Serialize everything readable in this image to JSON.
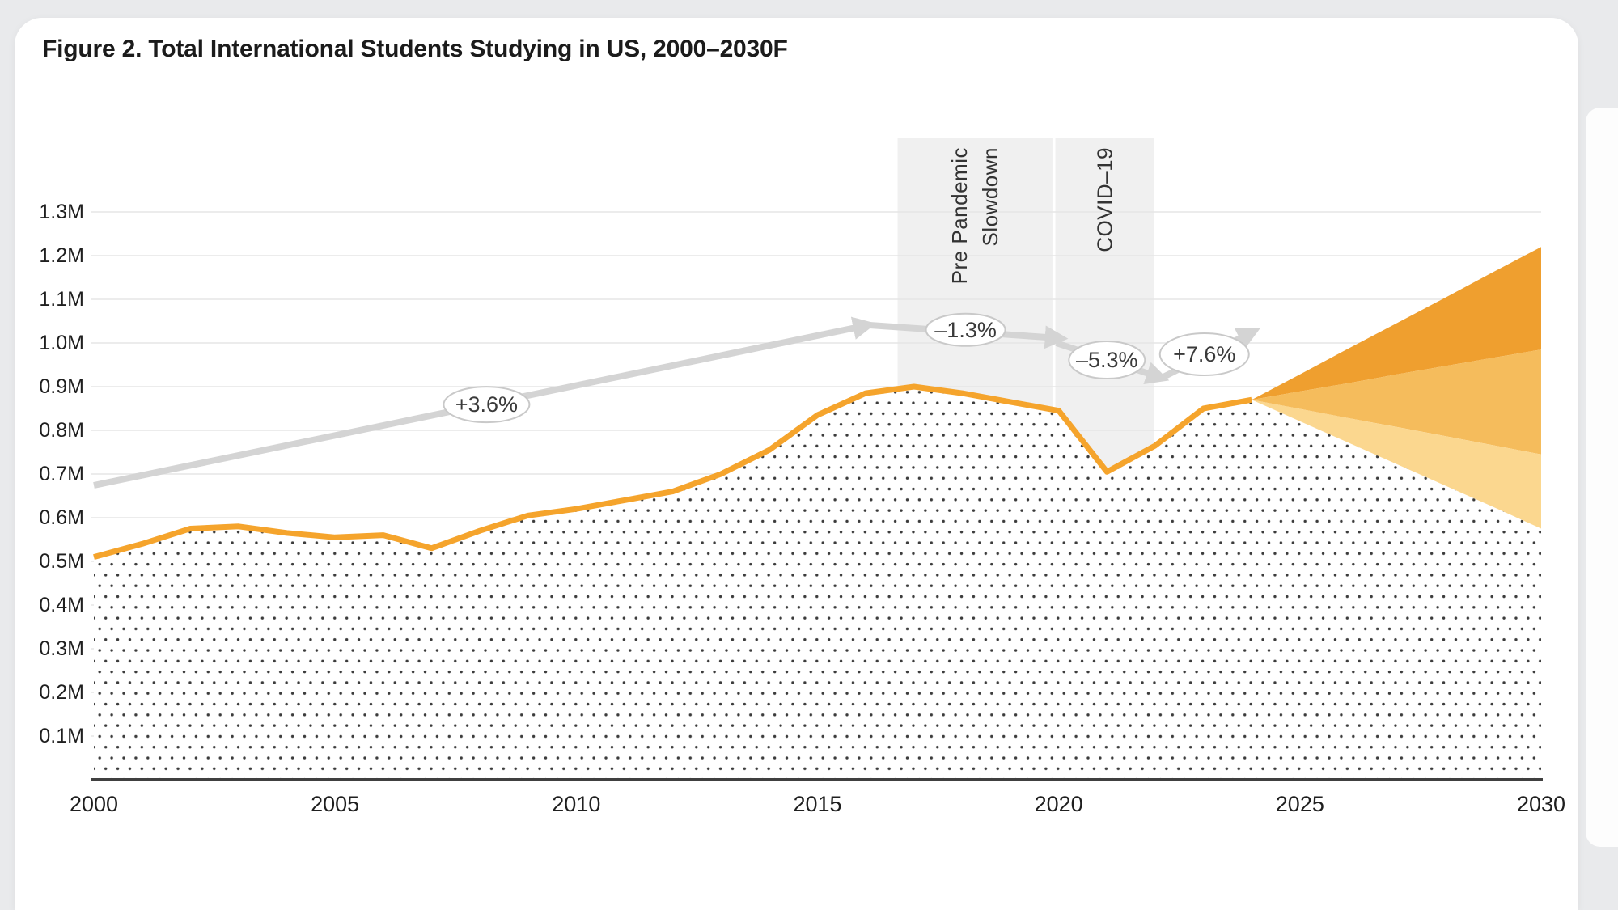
{
  "header": {
    "title": "Figure 2. Total International Students Studying in US, 2000–2030F"
  },
  "chart_data": {
    "type": "area",
    "title": "Figure 2. Total International Students Studying in US, 2000–2030F",
    "xlabel": "",
    "ylabel": "",
    "xlim": [
      2000,
      2030
    ],
    "ylim_millions": [
      0,
      1.35
    ],
    "grid": true,
    "legend": "none",
    "xtick_labels": [
      "2000",
      "2005",
      "2010",
      "2015",
      "2020",
      "2025",
      "2030"
    ],
    "xtick_years": [
      2000,
      2005,
      2010,
      2015,
      2020,
      2025,
      2030
    ],
    "ytick_labels": [
      "0.1M",
      "0.2M",
      "0.3M",
      "0.4M",
      "0.5M",
      "0.6M",
      "0.7M",
      "0.8M",
      "0.9M",
      "1.0M",
      "1.1M",
      "1.2M",
      "1.3M"
    ],
    "ytick_values": [
      0.1,
      0.2,
      0.3,
      0.4,
      0.5,
      0.6,
      0.7,
      0.8,
      0.9,
      1.0,
      1.1,
      1.2,
      1.3
    ],
    "historical": {
      "name": "Total international students (actual, dotted area with orange line)",
      "years": [
        2000,
        2001,
        2002,
        2003,
        2004,
        2005,
        2006,
        2007,
        2008,
        2009,
        2010,
        2011,
        2012,
        2013,
        2014,
        2015,
        2016,
        2017,
        2018,
        2019,
        2020,
        2021,
        2022,
        2023,
        2024
      ],
      "values_millions": [
        0.51,
        0.54,
        0.575,
        0.58,
        0.565,
        0.555,
        0.56,
        0.53,
        0.57,
        0.605,
        0.62,
        0.64,
        0.66,
        0.7,
        0.755,
        0.835,
        0.885,
        0.9,
        0.885,
        0.865,
        0.845,
        0.705,
        0.765,
        0.85,
        0.87
      ]
    },
    "forecast": {
      "name": "Forecast fan 2024–2030F",
      "years": [
        2024,
        2025,
        2026,
        2027,
        2028,
        2029,
        2030
      ],
      "scenarios": {
        "high_edge": [
          0.87,
          0.928,
          0.987,
          1.045,
          1.103,
          1.162,
          1.22
        ],
        "central_high_edge": [
          0.87,
          0.889,
          0.908,
          0.928,
          0.947,
          0.966,
          0.985
        ],
        "central_low_edge": [
          0.87,
          0.849,
          0.828,
          0.808,
          0.787,
          0.766,
          0.745
        ],
        "low_edge": [
          0.87,
          0.821,
          0.772,
          0.723,
          0.674,
          0.625,
          0.575
        ]
      }
    },
    "shaded_bands": [
      {
        "lines": [
          "Pre Pandemic",
          "Slowdown"
        ],
        "from_year": 2016.66,
        "to_year": 2019.87
      },
      {
        "lines": [
          "COVID–19"
        ],
        "from_year": 2019.93,
        "to_year": 2021.97
      }
    ],
    "trend_arrows": [
      {
        "label": "+3.6%",
        "from": {
          "year": 2000.0,
          "value": 0.674
        },
        "to": {
          "year": 2016.05,
          "value": 1.041
        },
        "label_at": {
          "year": 2008.14,
          "value": 0.859
        },
        "oval_rx": 53,
        "oval_ry": 22
      },
      {
        "label": "–1.3%",
        "from": {
          "year": 2016.05,
          "value": 1.041
        },
        "to": {
          "year": 2020.03,
          "value": 1.011
        },
        "label_at": {
          "year": 2018.07,
          "value": 1.03
        },
        "oval_rx": 49,
        "oval_ry": 20
      },
      {
        "label": "–5.3%",
        "from": {
          "year": 2019.95,
          "value": 1.0
        },
        "to": {
          "year": 2022.13,
          "value": 0.92
        },
        "label_at": {
          "year": 2021.0,
          "value": 0.961
        },
        "oval_rx": 47,
        "oval_ry": 23
      },
      {
        "label": "+7.6%",
        "from": {
          "year": 2022.13,
          "value": 0.92
        },
        "to": {
          "year": 2024.03,
          "value": 1.026
        },
        "label_at": {
          "year": 2023.02,
          "value": 0.974
        },
        "oval_rx": 55,
        "oval_ry": 26
      }
    ],
    "colors": {
      "page_background": "#e9eaec",
      "card_background": "#ffffff",
      "line_orange": "#f5a42c",
      "fan_dark": "#ef9f2f",
      "fan_mid": "#f5bc5c",
      "fan_light": "#fbd78f",
      "band_gray": "#f0f0f0",
      "gridline": "#e6e6e6",
      "axis": "#404040",
      "dot_fill": "#3b3b3b",
      "trend_gray": "#d4d4d4",
      "oval_stroke": "#c9c9c9",
      "text_dark": "#1f1f1f",
      "annotation_text": "#3a3a3a"
    }
  }
}
